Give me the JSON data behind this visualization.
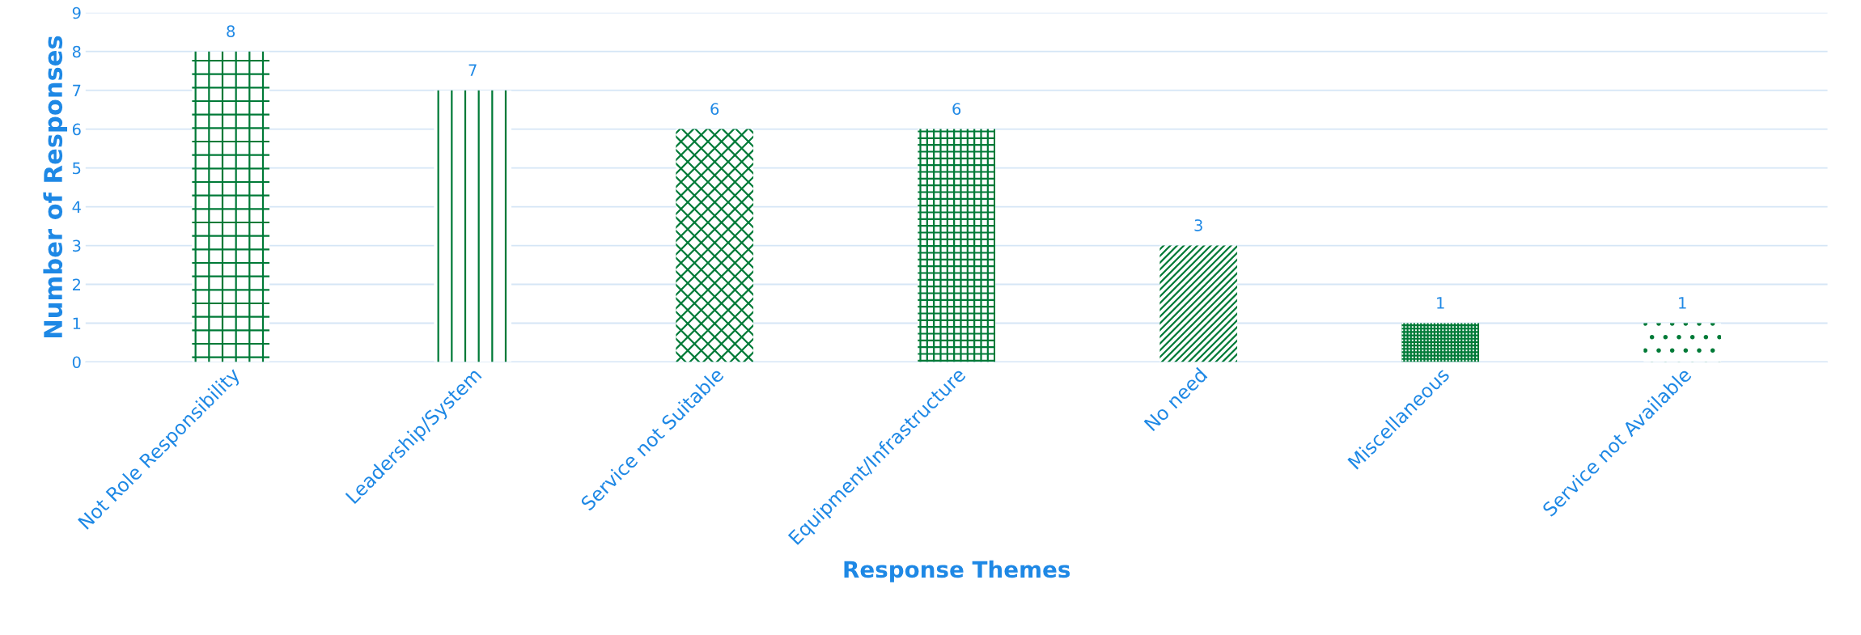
{
  "chart_data": {
    "type": "bar",
    "categories": [
      "Not Role Responsibility",
      "Leadership/System",
      "Service not Suitable",
      "Equipment/Infrastructure",
      "No need",
      "Miscellaneous",
      "Service not Available"
    ],
    "values": [
      8,
      7,
      6,
      6,
      3,
      1,
      1
    ],
    "color": "#007a37",
    "xlabel": "Response Themes",
    "ylabel": "Number of Responses",
    "ylim": [
      0,
      9
    ],
    "yticks": [
      0,
      1,
      2,
      3,
      4,
      5,
      6,
      7,
      8,
      9
    ],
    "grid": "y",
    "data_labels": true
  }
}
